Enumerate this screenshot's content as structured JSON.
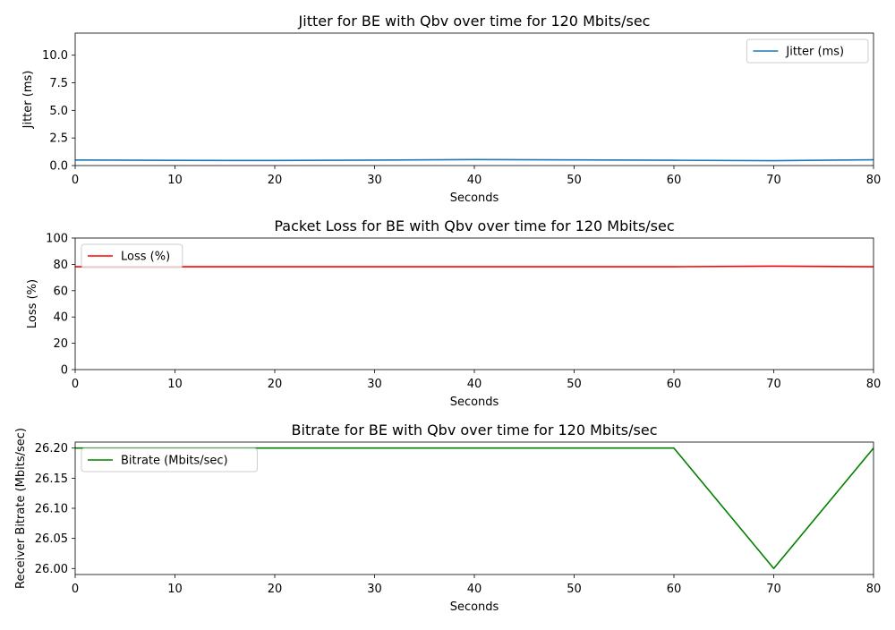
{
  "chart_data": [
    {
      "type": "line",
      "title": "Jitter for BE with Qbv over time for 120 Mbits/sec",
      "xlabel": "Seconds",
      "ylabel": "Jitter (ms)",
      "xlim": [
        0,
        80
      ],
      "ylim": [
        0,
        12
      ],
      "xticks": [
        0,
        10,
        20,
        30,
        40,
        50,
        60,
        70,
        80
      ],
      "yticks": [
        0,
        2.5,
        5,
        7.5,
        10
      ],
      "ytick_labels": [
        "0.0",
        "2.5",
        "5.0",
        "7.5",
        "10.0"
      ],
      "legend_loc": "top-right",
      "series": [
        {
          "name": "Jitter (ms)",
          "color": "#1f77b4",
          "x": [
            0,
            10,
            20,
            30,
            40,
            50,
            60,
            70,
            80
          ],
          "values": [
            0.5,
            0.47,
            0.46,
            0.49,
            0.54,
            0.51,
            0.48,
            0.44,
            0.52
          ]
        }
      ]
    },
    {
      "type": "line",
      "title": "Packet Loss for BE with Qbv over time for 120 Mbits/sec",
      "xlabel": "Seconds",
      "ylabel": "Loss (%)",
      "xlim": [
        0,
        80
      ],
      "ylim": [
        0,
        100
      ],
      "xticks": [
        0,
        10,
        20,
        30,
        40,
        50,
        60,
        70,
        80
      ],
      "yticks": [
        0,
        20,
        40,
        60,
        80,
        100
      ],
      "ytick_labels": [
        "0",
        "20",
        "40",
        "60",
        "80",
        "100"
      ],
      "legend_loc": "top-left",
      "series": [
        {
          "name": "Loss (%)",
          "color": "#ff0000",
          "x": [
            0,
            10,
            20,
            30,
            40,
            50,
            60,
            70,
            80
          ],
          "values": [
            78.2,
            78.2,
            78.2,
            78.2,
            78.2,
            78.2,
            78.2,
            78.6,
            78.2
          ]
        }
      ]
    },
    {
      "type": "line",
      "title": "Bitrate for BE with Qbv over time for 120 Mbits/sec",
      "xlabel": "Seconds",
      "ylabel": "Receiver Bitrate (Mbits/sec)",
      "xlim": [
        0,
        80
      ],
      "ylim": [
        25.99,
        26.21
      ],
      "xticks": [
        0,
        10,
        20,
        30,
        40,
        50,
        60,
        70,
        80
      ],
      "yticks": [
        26.0,
        26.05,
        26.1,
        26.15,
        26.2
      ],
      "ytick_labels": [
        "26.00",
        "26.05",
        "26.10",
        "26.15",
        "26.20"
      ],
      "legend_loc": "top-left",
      "series": [
        {
          "name": "Bitrate (Mbits/sec)",
          "color": "#008000",
          "x": [
            0,
            10,
            20,
            30,
            40,
            50,
            60,
            70,
            80
          ],
          "values": [
            26.2,
            26.2,
            26.2,
            26.2,
            26.2,
            26.2,
            26.2,
            26.0,
            26.2
          ]
        }
      ]
    }
  ]
}
